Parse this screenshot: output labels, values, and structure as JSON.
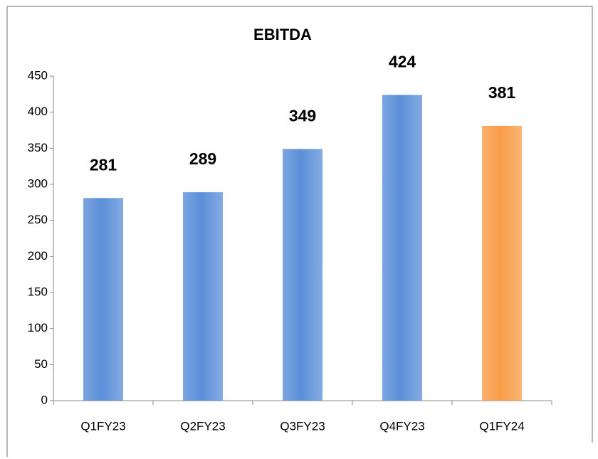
{
  "chart_data": {
    "type": "bar",
    "title": "EBITDA",
    "categories": [
      "Q1FY23",
      "Q2FY23",
      "Q3FY23",
      "Q4FY23",
      "Q1FY24"
    ],
    "values": [
      281,
      289,
      349,
      424,
      381
    ],
    "colors": [
      "#5b8fd9",
      "#5b8fd9",
      "#5b8fd9",
      "#5b8fd9",
      "#f89c48"
    ],
    "ylim": [
      0,
      450
    ],
    "yticks": [
      0,
      50,
      100,
      150,
      200,
      250,
      300,
      350,
      400,
      450
    ],
    "grid": false
  }
}
